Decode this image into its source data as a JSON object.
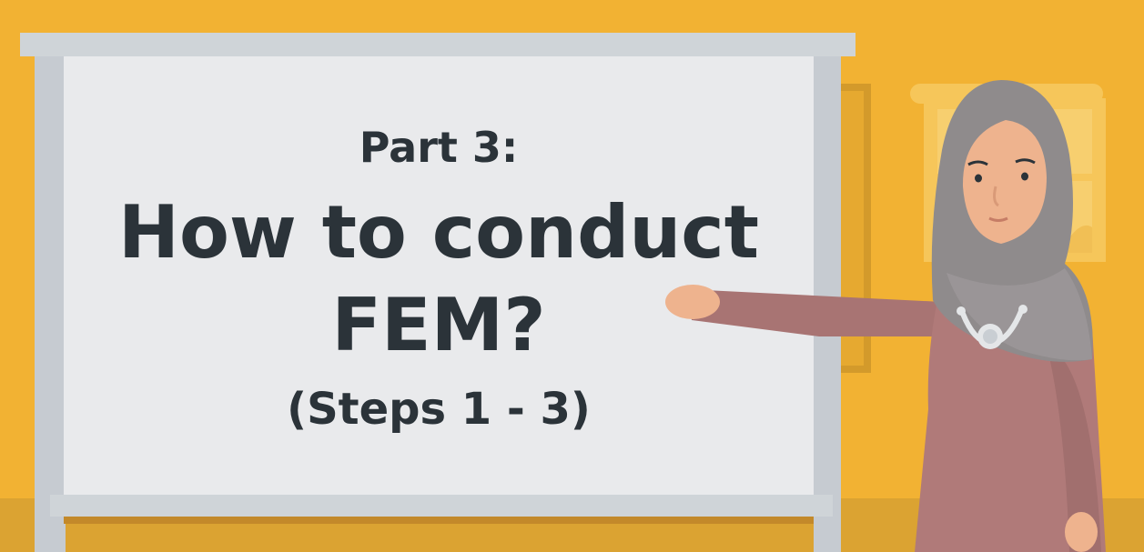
{
  "whiteboard": {
    "part_label": "Part 3:",
    "title_line_1": "How to conduct",
    "title_line_2": "FEM?",
    "subtitle": "(Steps 1 - 3)"
  },
  "colors": {
    "wall": "#f2b233",
    "floor": "#d9a132",
    "board_face": "#e9eaec",
    "board_frame": "#c9ced3",
    "text": "#2b3339",
    "hijab": "#8f8b8c",
    "dress": "#b07a79",
    "skin": "#eeb38e"
  },
  "icons": {
    "character": "presenter-woman-with-hijab-and-stethoscope",
    "window": "window-icon",
    "stethoscope": "stethoscope-icon"
  }
}
